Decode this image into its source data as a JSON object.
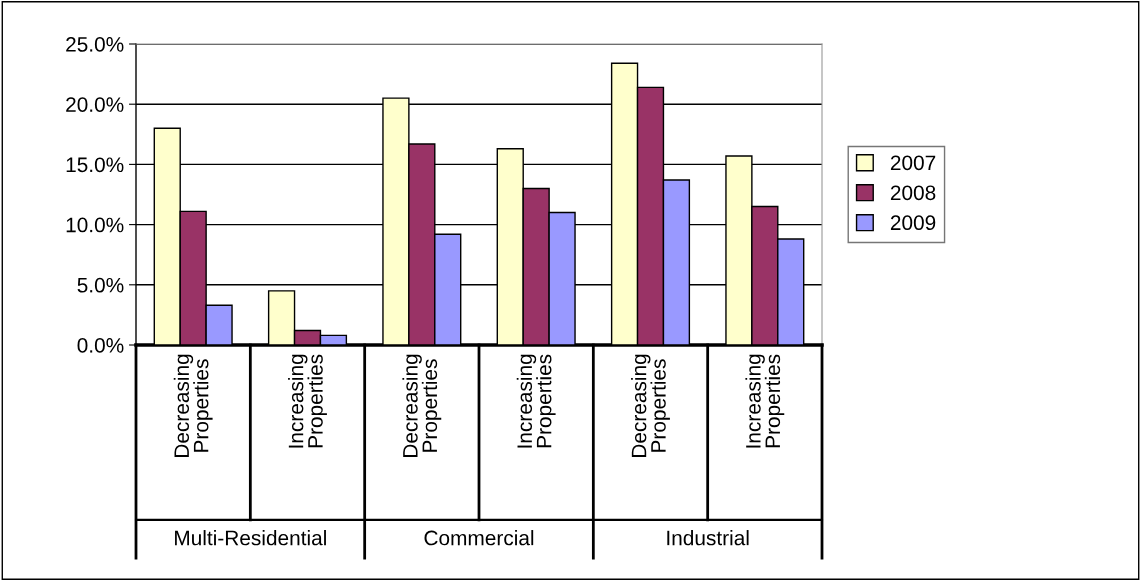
{
  "chart_data": {
    "type": "bar",
    "categories": [
      "Decreasing\nProperties",
      "Increasing\nProperties",
      "Decreasing\nProperties",
      "Increasing\nProperties",
      "Decreasing\nProperties",
      "Increasing\nProperties"
    ],
    "annotations": [
      "Multi-Residential",
      "Commercial",
      "Industrial"
    ],
    "series": [
      {
        "name": "2007",
        "color": "#ffffcc",
        "values": [
          18.0,
          4.5,
          20.5,
          16.3,
          23.4,
          15.7
        ]
      },
      {
        "name": "2008",
        "color": "#993366",
        "values": [
          11.1,
          1.2,
          16.7,
          13.0,
          21.4,
          11.5
        ]
      },
      {
        "name": "2009",
        "color": "#9999ff",
        "values": [
          3.3,
          0.8,
          9.2,
          11.0,
          13.7,
          8.8
        ]
      }
    ],
    "ylim": [
      0,
      25
    ],
    "yticks": [
      {
        "value": 0,
        "label": "0.0%"
      },
      {
        "value": 5,
        "label": "5.0%"
      },
      {
        "value": 10,
        "label": "10.0%"
      },
      {
        "value": 15,
        "label": "15.0%"
      },
      {
        "value": 20,
        "label": "20.0%"
      },
      {
        "value": 25,
        "label": "25.0%"
      }
    ],
    "grid": "y",
    "legend": "right"
  }
}
